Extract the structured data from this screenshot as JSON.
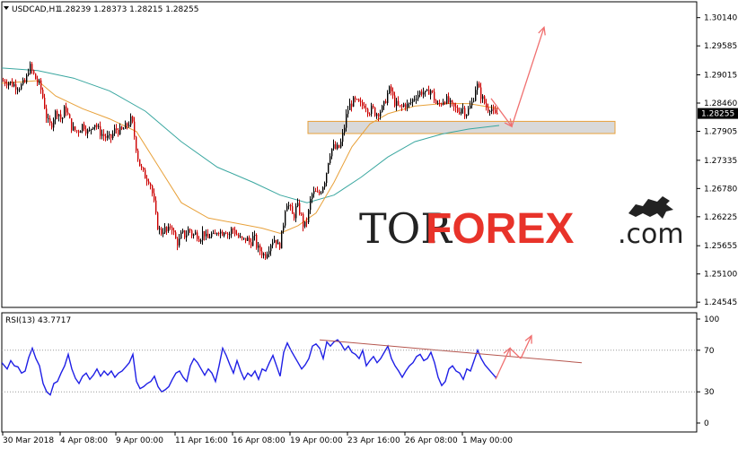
{
  "header": {
    "symbol": "USDCAD,H1",
    "ohlc": "1.28239 1.28373 1.28215 1.28255"
  },
  "rsi_header": "RSI(13) 43.7717",
  "watermark": {
    "left": "TOR",
    "accent": "FOREX",
    "suffix": ".com",
    "icon": "bull-bear-icon"
  },
  "colors": {
    "bull_candle": "#000000",
    "bear_candle": "#cc0000",
    "ma_fast": "#e8a13a",
    "ma_slow": "#3aa7a0",
    "rsi_line": "#1f1fe6",
    "rsi_trend": "#b5554d",
    "forecast_arrow": "#f07070",
    "zone_fill": "#d9d9d9",
    "zone_border": "#e8a13a",
    "price_tag_bg": "#000000"
  },
  "chart_data": [
    {
      "type": "line",
      "name": "price",
      "title": "USDCAD,H1",
      "y_ticks": [
        "1.30140",
        "1.29585",
        "1.29015",
        "1.28460",
        "1.27905",
        "1.27335",
        "1.26780",
        "1.26225",
        "1.25655",
        "1.25100",
        "1.24545"
      ],
      "current_price": "1.28255",
      "ylim": [
        1.2446,
        1.3024
      ],
      "x_ticks": [
        "30 Mar 2018",
        "4 Apr 08:00",
        "9 Apr 00:00",
        "11 Apr 16:00",
        "16 Apr 08:00",
        "19 Apr 00:00",
        "23 Apr 16:00",
        "26 Apr 08:00",
        "1 May 00:00"
      ],
      "close_path": [
        [
          0,
          1.289
        ],
        [
          8,
          1.2888
        ],
        [
          15,
          1.2882
        ],
        [
          22,
          1.2878
        ],
        [
          28,
          1.2888
        ],
        [
          32,
          1.292
        ],
        [
          36,
          1.2905
        ],
        [
          40,
          1.289
        ],
        [
          44,
          1.288
        ],
        [
          48,
          1.285
        ],
        [
          52,
          1.281
        ],
        [
          56,
          1.28
        ],
        [
          60,
          1.2825
        ],
        [
          64,
          1.283
        ],
        [
          68,
          1.281
        ],
        [
          72,
          1.284
        ],
        [
          76,
          1.2815
        ],
        [
          80,
          1.2795
        ],
        [
          86,
          1.279
        ],
        [
          92,
          1.2805
        ],
        [
          98,
          1.2785
        ],
        [
          104,
          1.281
        ],
        [
          110,
          1.279
        ],
        [
          116,
          1.278
        ],
        [
          122,
          1.2775
        ],
        [
          128,
          1.2795
        ],
        [
          134,
          1.279
        ],
        [
          140,
          1.28
        ],
        [
          146,
          1.2815
        ],
        [
          150,
          1.277
        ],
        [
          154,
          1.273
        ],
        [
          158,
          1.271
        ],
        [
          162,
          1.27
        ],
        [
          166,
          1.2695
        ],
        [
          170,
          1.266
        ],
        [
          174,
          1.261
        ],
        [
          178,
          1.259
        ],
        [
          182,
          1.26
        ],
        [
          186,
          1.259
        ],
        [
          190,
          1.261
        ],
        [
          194,
          1.258
        ],
        [
          198,
          1.257
        ],
        [
          202,
          1.259
        ],
        [
          206,
          1.2585
        ],
        [
          210,
          1.26
        ],
        [
          214,
          1.2585
        ],
        [
          218,
          1.259
        ],
        [
          222,
          1.258
        ],
        [
          226,
          1.2595
        ],
        [
          230,
          1.2575
        ],
        [
          234,
          1.259
        ],
        [
          238,
          1.258
        ],
        [
          242,
          1.26
        ],
        [
          246,
          1.259
        ],
        [
          250,
          1.26
        ],
        [
          254,
          1.2585
        ],
        [
          258,
          1.26
        ],
        [
          262,
          1.259
        ],
        [
          266,
          1.258
        ],
        [
          270,
          1.2575
        ],
        [
          274,
          1.258
        ],
        [
          278,
          1.257
        ],
        [
          282,
          1.2585
        ],
        [
          286,
          1.256
        ],
        [
          290,
          1.2555
        ],
        [
          294,
          1.2545
        ],
        [
          298,
          1.256
        ],
        [
          302,
          1.2575
        ],
        [
          306,
          1.258
        ],
        [
          310,
          1.256
        ],
        [
          314,
          1.2595
        ],
        [
          318,
          1.2655
        ],
        [
          322,
          1.264
        ],
        [
          326,
          1.262
        ],
        [
          330,
          1.2645
        ],
        [
          334,
          1.263
        ],
        [
          338,
          1.26
        ],
        [
          342,
          1.262
        ],
        [
          346,
          1.2665
        ],
        [
          350,
          1.267
        ],
        [
          354,
          1.2665
        ],
        [
          358,
          1.268
        ],
        [
          362,
          1.27
        ],
        [
          366,
          1.2745
        ],
        [
          370,
          1.276
        ],
        [
          374,
          1.2755
        ],
        [
          378,
          1.276
        ],
        [
          382,
          1.279
        ],
        [
          386,
          1.283
        ],
        [
          390,
          1.2845
        ],
        [
          394,
          1.285
        ],
        [
          398,
          1.2845
        ],
        [
          402,
          1.284
        ],
        [
          406,
          1.2845
        ],
        [
          410,
          1.283
        ],
        [
          414,
          1.2835
        ],
        [
          418,
          1.2825
        ],
        [
          422,
          1.283
        ],
        [
          426,
          1.2835
        ],
        [
          430,
          1.286
        ],
        [
          434,
          1.2875
        ],
        [
          438,
          1.285
        ],
        [
          442,
          1.284
        ],
        [
          446,
          1.2835
        ],
        [
          450,
          1.2845
        ],
        [
          454,
          1.284
        ],
        [
          458,
          1.285
        ],
        [
          462,
          1.286
        ],
        [
          466,
          1.2865
        ],
        [
          470,
          1.287
        ],
        [
          474,
          1.286
        ],
        [
          478,
          1.2875
        ],
        [
          482,
          1.286
        ],
        [
          486,
          1.284
        ],
        [
          490,
          1.2845
        ],
        [
          494,
          1.2855
        ],
        [
          498,
          1.285
        ],
        [
          502,
          1.284
        ],
        [
          506,
          1.2835
        ],
        [
          510,
          1.283
        ],
        [
          514,
          1.284
        ],
        [
          518,
          1.2825
        ],
        [
          522,
          1.2835
        ],
        [
          526,
          1.285
        ],
        [
          530,
          1.2885
        ],
        [
          534,
          1.2865
        ],
        [
          538,
          1.285
        ],
        [
          542,
          1.2835
        ],
        [
          546,
          1.284
        ],
        [
          550,
          1.282
        ],
        [
          554,
          1.2825
        ]
      ],
      "ma_fast_path": [
        [
          0,
          1.2885
        ],
        [
          40,
          1.289
        ],
        [
          60,
          1.286
        ],
        [
          90,
          1.2835
        ],
        [
          120,
          1.2815
        ],
        [
          150,
          1.279
        ],
        [
          175,
          1.272
        ],
        [
          200,
          1.265
        ],
        [
          230,
          1.262
        ],
        [
          260,
          1.261
        ],
        [
          290,
          1.26
        ],
        [
          310,
          1.259
        ],
        [
          330,
          1.2605
        ],
        [
          350,
          1.263
        ],
        [
          370,
          1.269
        ],
        [
          390,
          1.276
        ],
        [
          410,
          1.2805
        ],
        [
          430,
          1.2825
        ],
        [
          460,
          1.284
        ],
        [
          490,
          1.2845
        ],
        [
          520,
          1.2845
        ],
        [
          554,
          1.2835
        ]
      ],
      "ma_slow_path": [
        [
          0,
          1.2915
        ],
        [
          40,
          1.291
        ],
        [
          80,
          1.2895
        ],
        [
          120,
          1.287
        ],
        [
          160,
          1.283
        ],
        [
          200,
          1.277
        ],
        [
          240,
          1.272
        ],
        [
          280,
          1.269
        ],
        [
          310,
          1.2665
        ],
        [
          340,
          1.265
        ],
        [
          370,
          1.2665
        ],
        [
          400,
          1.27
        ],
        [
          430,
          1.274
        ],
        [
          460,
          1.277
        ],
        [
          490,
          1.2785
        ],
        [
          520,
          1.2795
        ],
        [
          554,
          1.2802
        ]
      ],
      "zone": [
        1.2786,
        1.281
      ]
    },
    {
      "type": "line",
      "name": "RSI(13)",
      "title": "RSI(13) 43.7717",
      "y_ticks": [
        "100",
        "70",
        "30",
        "0"
      ],
      "ylim": [
        0,
        100
      ],
      "rsi_path": [
        [
          0,
          58
        ],
        [
          6,
          52
        ],
        [
          10,
          60
        ],
        [
          14,
          55
        ],
        [
          18,
          54
        ],
        [
          22,
          48
        ],
        [
          26,
          50
        ],
        [
          30,
          63
        ],
        [
          34,
          72
        ],
        [
          38,
          62
        ],
        [
          42,
          55
        ],
        [
          46,
          38
        ],
        [
          50,
          30
        ],
        [
          54,
          27
        ],
        [
          58,
          38
        ],
        [
          62,
          40
        ],
        [
          66,
          48
        ],
        [
          70,
          55
        ],
        [
          74,
          66
        ],
        [
          78,
          52
        ],
        [
          82,
          43
        ],
        [
          86,
          38
        ],
        [
          90,
          45
        ],
        [
          94,
          48
        ],
        [
          98,
          42
        ],
        [
          102,
          46
        ],
        [
          106,
          52
        ],
        [
          110,
          45
        ],
        [
          114,
          50
        ],
        [
          118,
          46
        ],
        [
          122,
          50
        ],
        [
          126,
          44
        ],
        [
          130,
          48
        ],
        [
          134,
          50
        ],
        [
          138,
          54
        ],
        [
          142,
          58
        ],
        [
          146,
          66
        ],
        [
          150,
          40
        ],
        [
          154,
          33
        ],
        [
          158,
          35
        ],
        [
          162,
          38
        ],
        [
          166,
          40
        ],
        [
          170,
          45
        ],
        [
          174,
          35
        ],
        [
          178,
          30
        ],
        [
          182,
          32
        ],
        [
          186,
          35
        ],
        [
          190,
          42
        ],
        [
          194,
          48
        ],
        [
          198,
          50
        ],
        [
          202,
          44
        ],
        [
          206,
          40
        ],
        [
          210,
          55
        ],
        [
          214,
          62
        ],
        [
          218,
          58
        ],
        [
          222,
          52
        ],
        [
          226,
          46
        ],
        [
          230,
          52
        ],
        [
          234,
          48
        ],
        [
          238,
          40
        ],
        [
          242,
          55
        ],
        [
          246,
          72
        ],
        [
          250,
          65
        ],
        [
          254,
          56
        ],
        [
          258,
          48
        ],
        [
          262,
          60
        ],
        [
          266,
          50
        ],
        [
          270,
          42
        ],
        [
          274,
          48
        ],
        [
          278,
          45
        ],
        [
          282,
          50
        ],
        [
          286,
          42
        ],
        [
          290,
          52
        ],
        [
          294,
          50
        ],
        [
          298,
          58
        ],
        [
          302,
          65
        ],
        [
          306,
          55
        ],
        [
          310,
          45
        ],
        [
          314,
          68
        ],
        [
          318,
          77
        ],
        [
          322,
          70
        ],
        [
          326,
          64
        ],
        [
          330,
          58
        ],
        [
          334,
          52
        ],
        [
          338,
          56
        ],
        [
          342,
          62
        ],
        [
          346,
          74
        ],
        [
          350,
          76
        ],
        [
          354,
          72
        ],
        [
          358,
          62
        ],
        [
          362,
          78
        ],
        [
          366,
          74
        ],
        [
          370,
          78
        ],
        [
          374,
          80
        ],
        [
          378,
          76
        ],
        [
          382,
          70
        ],
        [
          386,
          74
        ],
        [
          390,
          68
        ],
        [
          394,
          66
        ],
        [
          398,
          62
        ],
        [
          402,
          70
        ],
        [
          406,
          55
        ],
        [
          410,
          60
        ],
        [
          414,
          64
        ],
        [
          418,
          58
        ],
        [
          422,
          62
        ],
        [
          426,
          68
        ],
        [
          430,
          74
        ],
        [
          434,
          62
        ],
        [
          438,
          55
        ],
        [
          442,
          50
        ],
        [
          446,
          44
        ],
        [
          450,
          50
        ],
        [
          454,
          55
        ],
        [
          458,
          58
        ],
        [
          462,
          64
        ],
        [
          466,
          66
        ],
        [
          470,
          60
        ],
        [
          474,
          62
        ],
        [
          478,
          68
        ],
        [
          482,
          58
        ],
        [
          486,
          44
        ],
        [
          490,
          36
        ],
        [
          494,
          40
        ],
        [
          498,
          52
        ],
        [
          502,
          55
        ],
        [
          506,
          50
        ],
        [
          510,
          48
        ],
        [
          514,
          42
        ],
        [
          518,
          52
        ],
        [
          522,
          50
        ],
        [
          526,
          60
        ],
        [
          530,
          70
        ],
        [
          534,
          62
        ],
        [
          538,
          56
        ],
        [
          542,
          52
        ],
        [
          546,
          48
        ],
        [
          550,
          44
        ],
        [
          552,
          45
        ]
      ],
      "rsi_trend": [
        [
          356,
          80
        ],
        [
          648,
          58
        ]
      ],
      "rsi_forecast": [
        [
          552,
          42
        ],
        [
          568,
          72
        ],
        [
          580,
          62
        ],
        [
          592,
          84
        ]
      ]
    }
  ]
}
